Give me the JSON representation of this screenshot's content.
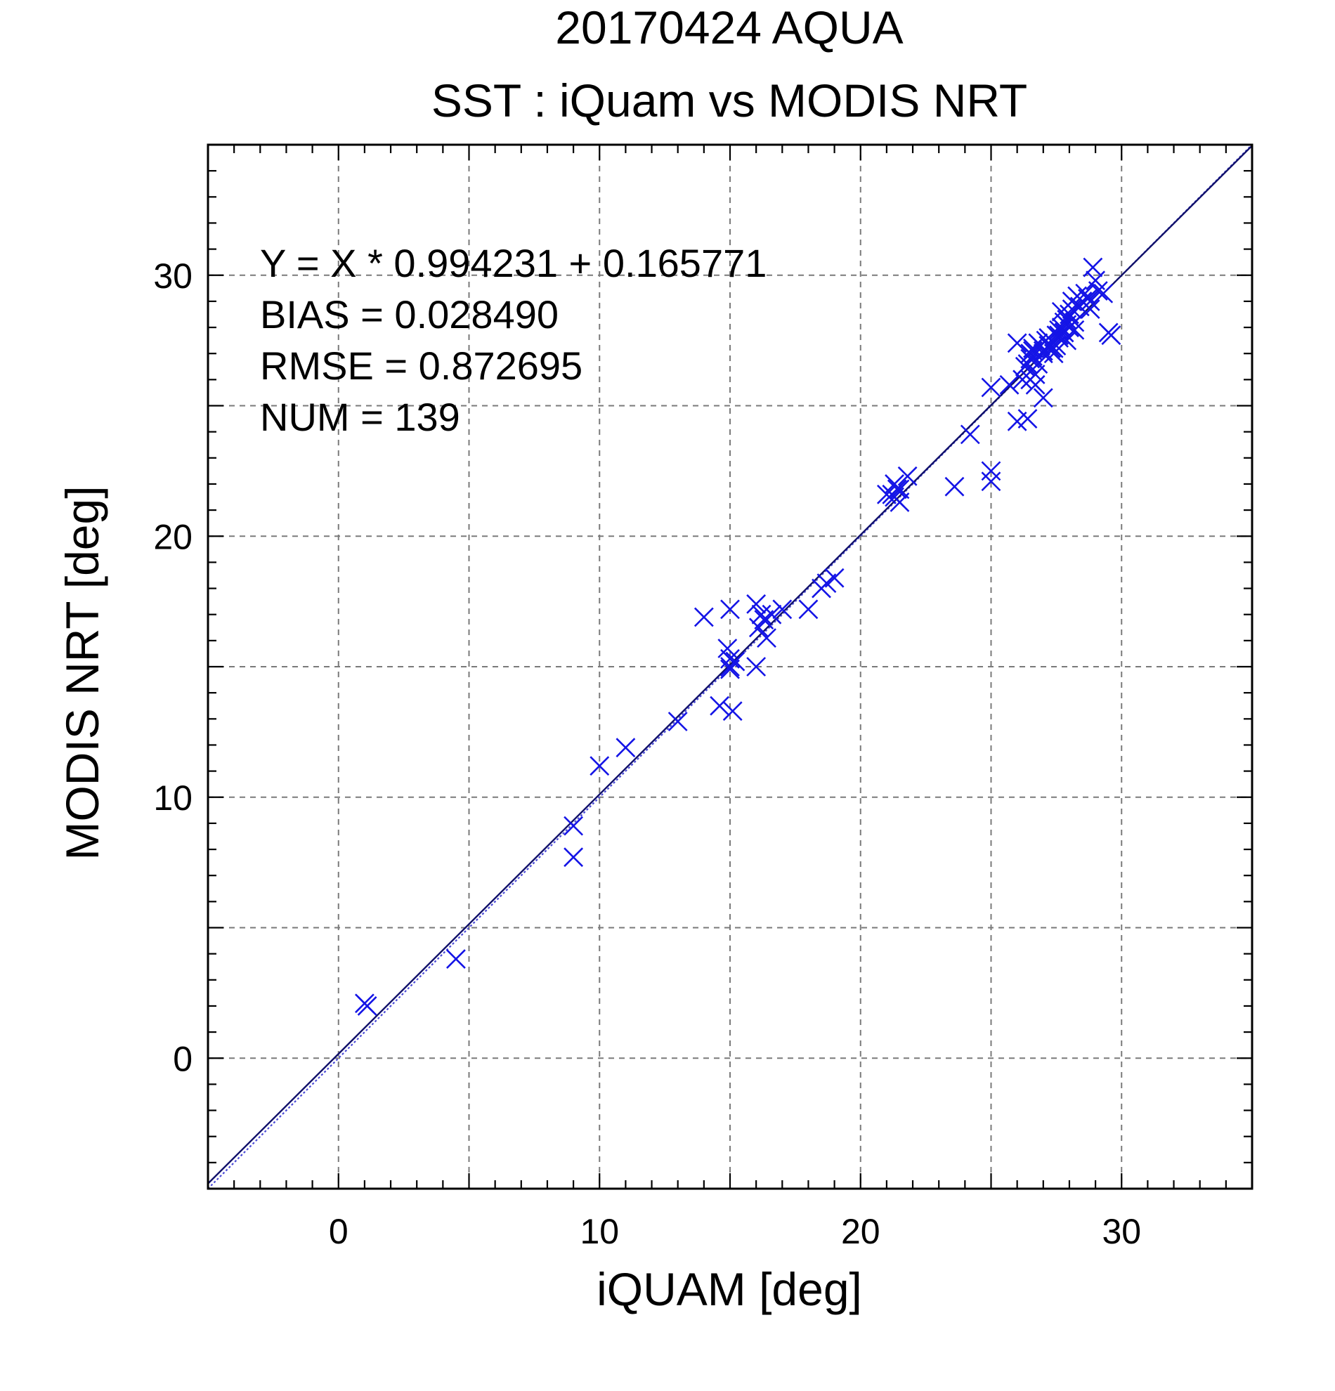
{
  "chart_data": {
    "type": "scatter",
    "title": "20170424 AQUA",
    "subtitle": "SST : iQuam vs MODIS NRT",
    "xlabel": "iQUAM [deg]",
    "ylabel": "MODIS NRT [deg]",
    "xlim": [
      -5,
      35
    ],
    "ylim": [
      -5,
      35
    ],
    "xticks": [
      0,
      10,
      20,
      30
    ],
    "yticks": [
      0,
      10,
      20,
      30
    ],
    "grid": true,
    "grid_step": 5,
    "minor_tick_step": 1,
    "marker": "x",
    "marker_color": "#1414e6",
    "stats": [
      "Y = X * 0.994231 + 0.165771",
      "BIAS = 0.028490",
      "RMSE = 0.872695",
      "NUM = 139"
    ],
    "fit": {
      "slope": 0.994231,
      "intercept": 0.165771
    },
    "series": [
      {
        "x": [
          1.0,
          1.1,
          4.5,
          9.0,
          9.0,
          10.0,
          11.0,
          13.0,
          14.0,
          14.6,
          14.9,
          15.0,
          15.0,
          15.0,
          15.1,
          15.2,
          15.0,
          16.0,
          16.0,
          16.1,
          16.2,
          16.4,
          16.3,
          16.6,
          17.0,
          18.0,
          18.5,
          18.7,
          19.0,
          21.0,
          21.2,
          21.4,
          21.3,
          21.5,
          21.8,
          21.3,
          21.5,
          23.6,
          24.2,
          25.0,
          25.0,
          25.0,
          25.7,
          26.0,
          26.0,
          26.2,
          26.3,
          26.4,
          26.5,
          26.5,
          26.6,
          26.7,
          26.8,
          26.6,
          26.8,
          26.9,
          27.0,
          27.1,
          27.2,
          26.7,
          27.0,
          26.5,
          27.3,
          27.4,
          27.5,
          27.5,
          27.6,
          27.6,
          27.7,
          27.8,
          27.9,
          27.8,
          28.0,
          27.9,
          28.0,
          28.0,
          28.1,
          28.2,
          27.7,
          27.8,
          28.1,
          28.3,
          28.4,
          28.5,
          28.7,
          28.8,
          28.9,
          29.0,
          28.6,
          28.8,
          29.1,
          29.3,
          29.6,
          29.5,
          26.4,
          26.6,
          27.0,
          27.2,
          27.4,
          27.6,
          27.9,
          28.2
        ],
        "y": [
          2.1,
          2.0,
          3.8,
          8.9,
          7.7,
          11.2,
          11.9,
          12.9,
          16.9,
          13.5,
          15.7,
          15.3,
          15.0,
          17.2,
          13.3,
          15.2,
          14.9,
          17.4,
          15.0,
          16.5,
          17.0,
          16.1,
          16.8,
          17.0,
          17.2,
          17.2,
          18.0,
          18.2,
          18.4,
          21.6,
          21.6,
          21.8,
          22.0,
          21.3,
          22.3,
          21.5,
          21.8,
          21.9,
          23.9,
          25.7,
          22.5,
          22.1,
          25.8,
          27.4,
          24.4,
          26.0,
          26.5,
          24.5,
          26.8,
          27.0,
          27.1,
          26.2,
          26.6,
          27.2,
          27.4,
          27.3,
          27.0,
          27.5,
          27.6,
          25.8,
          25.3,
          26.0,
          27.2,
          27.0,
          27.7,
          27.3,
          27.9,
          27.6,
          28.0,
          28.2,
          28.3,
          27.8,
          28.0,
          27.5,
          28.5,
          28.0,
          28.7,
          28.2,
          28.6,
          27.8,
          29.0,
          29.2,
          28.8,
          29.0,
          29.1,
          28.7,
          30.3,
          29.8,
          29.3,
          29.0,
          29.4,
          29.3,
          27.7,
          27.8,
          26.6,
          26.9,
          27.1,
          27.3,
          27.2,
          27.7,
          28.1,
          27.9
        ]
      }
    ]
  }
}
